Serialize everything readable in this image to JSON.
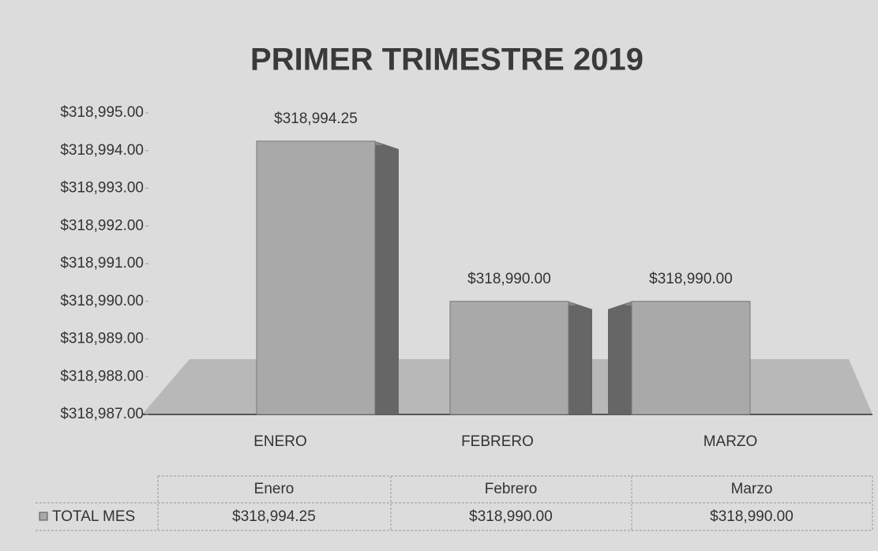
{
  "chart_data": {
    "type": "bar3d",
    "title": "PRIMER TRIMESTRE 2019",
    "categories": [
      "ENERO",
      "FEBRERO",
      "MARZO"
    ],
    "values": [
      318994.25,
      318990,
      318990
    ],
    "value_labels": [
      "$318,994.25",
      "$318,990.00",
      "$318,990.00"
    ],
    "color": "#a9a9a9",
    "ylim": [
      318987,
      318995
    ],
    "yticks": [
      {
        "value": 318987,
        "label": "$318,987.00"
      },
      {
        "value": 318988,
        "label": "$318,988.00"
      },
      {
        "value": 318989,
        "label": "$318,989.00"
      },
      {
        "value": 318990,
        "label": "$318,990.00"
      },
      {
        "value": 318991,
        "label": "$318,991.00"
      },
      {
        "value": 318992,
        "label": "$318,992.00"
      },
      {
        "value": 318993,
        "label": "$318,993.00"
      },
      {
        "value": 318994,
        "label": "$318,994.00"
      },
      {
        "value": 318995,
        "label": "$318,995.00"
      }
    ],
    "data_table": {
      "columns": [
        "Enero",
        "Febrero",
        "Marzo"
      ],
      "row_label": "TOTAL MES"
    }
  }
}
